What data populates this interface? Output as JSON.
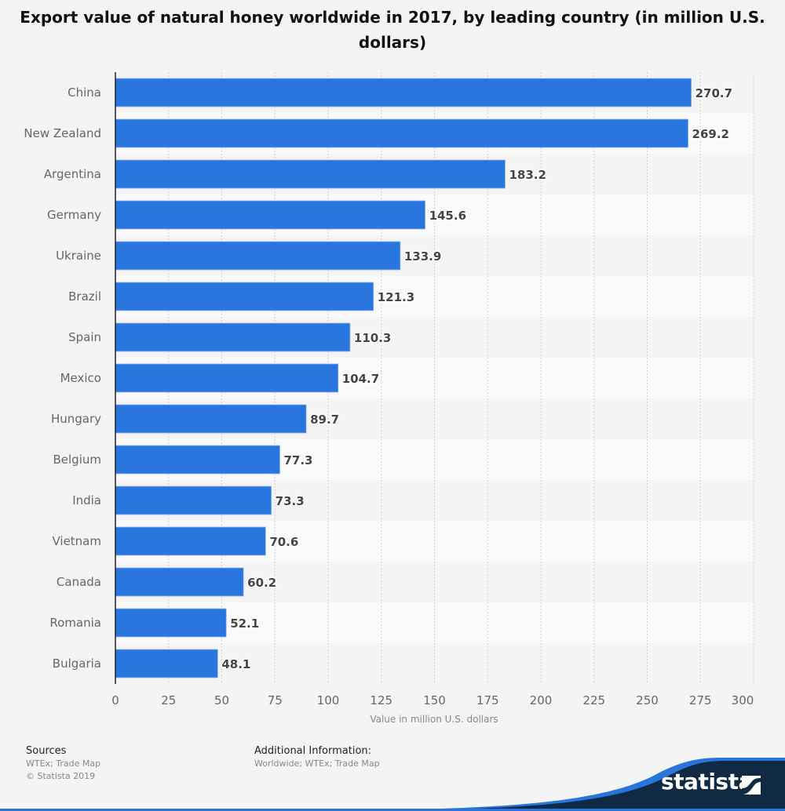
{
  "title": "Export value of natural honey worldwide in 2017, by leading country (in million U.S. dollars)",
  "chart_data": {
    "type": "bar",
    "orientation": "horizontal",
    "title": "Export value of natural honey worldwide in 2017, by leading country (in million U.S. dollars)",
    "categories": [
      "China",
      "New Zealand",
      "Argentina",
      "Germany",
      "Ukraine",
      "Brazil",
      "Spain",
      "Mexico",
      "Hungary",
      "Belgium",
      "India",
      "Vietnam",
      "Canada",
      "Romania",
      "Bulgaria"
    ],
    "values": [
      270.7,
      269.2,
      183.2,
      145.6,
      133.9,
      121.3,
      110.3,
      104.7,
      89.7,
      77.3,
      73.3,
      70.6,
      60.2,
      52.1,
      48.1
    ],
    "value_labels": [
      "270.7",
      "269.2",
      "183.2",
      "145.6",
      "133.9",
      "121.3",
      "110.3",
      "104.7",
      "89.7",
      "77.3",
      "73.3",
      "70.6",
      "60.2",
      "52.1",
      "48.1"
    ],
    "xlabel": "Value in million U.S. dollars",
    "ylabel": "",
    "xlim": [
      0,
      300
    ],
    "xticks": [
      0,
      25,
      50,
      75,
      100,
      125,
      150,
      175,
      200,
      225,
      250,
      275,
      300
    ],
    "xtick_labels": [
      "0",
      "25",
      "50",
      "75",
      "100",
      "125",
      "150",
      "175",
      "200",
      "225",
      "250",
      "275",
      "300"
    ],
    "grid": true,
    "legend": "none",
    "bar_color": "#2876dd"
  },
  "footer": {
    "sources_heading": "Sources",
    "sources_line1": "WTEx; Trade Map",
    "sources_line2": "© Statista 2019",
    "additional_heading": "Additional Information:",
    "additional_line1": "Worldwide; WTEx; Trade Map"
  },
  "brand": {
    "name": "statista",
    "dark_color": "#0f2a42",
    "accent_color": "#2876dd"
  }
}
